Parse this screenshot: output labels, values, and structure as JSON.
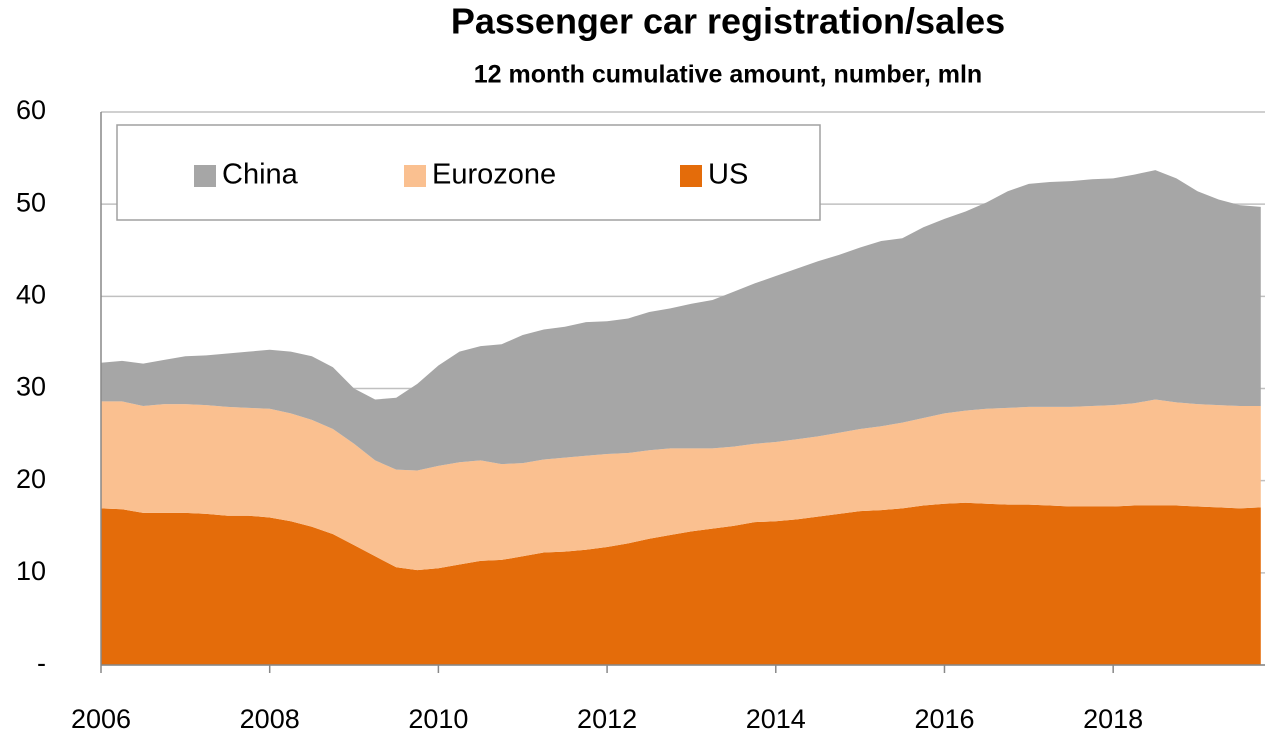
{
  "chart_data": {
    "type": "area",
    "stacked": true,
    "title": "Passenger car registration/sales",
    "subtitle": "12 month cumulative amount, number, mln",
    "x": [
      2006,
      2006.25,
      2006.5,
      2006.75,
      2007,
      2007.25,
      2007.5,
      2007.75,
      2008,
      2008.25,
      2008.5,
      2008.75,
      2009,
      2009.25,
      2009.5,
      2009.75,
      2010,
      2010.25,
      2010.5,
      2010.75,
      2011,
      2011.25,
      2011.5,
      2011.75,
      2012,
      2012.25,
      2012.5,
      2012.75,
      2013,
      2013.25,
      2013.5,
      2013.75,
      2014,
      2014.25,
      2014.5,
      2014.75,
      2015,
      2015.25,
      2015.5,
      2015.75,
      2016,
      2016.25,
      2016.5,
      2016.75,
      2017,
      2017.25,
      2017.5,
      2017.75,
      2018,
      2018.25,
      2018.5,
      2018.75,
      2019,
      2019.25,
      2019.5,
      2019.75
    ],
    "series": [
      {
        "name": "US",
        "color": "#e46c0a",
        "values": [
          17,
          16.9,
          16.5,
          16.5,
          16.5,
          16.4,
          16.2,
          16.2,
          16.0,
          15.6,
          15.0,
          14.2,
          13.0,
          11.8,
          10.6,
          10.3,
          10.5,
          10.9,
          11.3,
          11.4,
          11.8,
          12.2,
          12.3,
          12.5,
          12.8,
          13.2,
          13.7,
          14.1,
          14.5,
          14.8,
          15.1,
          15.5,
          15.6,
          15.8,
          16.1,
          16.4,
          16.7,
          16.8,
          17.0,
          17.3,
          17.5,
          17.6,
          17.5,
          17.4,
          17.4,
          17.3,
          17.2,
          17.2,
          17.2,
          17.3,
          17.3,
          17.3,
          17.2,
          17.1,
          17.0,
          17.1
        ]
      },
      {
        "name": "Eurozone",
        "color": "#fac090",
        "values": [
          11.6,
          11.7,
          11.6,
          11.8,
          11.8,
          11.8,
          11.8,
          11.7,
          11.8,
          11.7,
          11.6,
          11.4,
          11.0,
          10.4,
          10.6,
          10.8,
          11.1,
          11.1,
          10.9,
          10.4,
          10.1,
          10.1,
          10.2,
          10.2,
          10.1,
          9.8,
          9.6,
          9.4,
          9.0,
          8.7,
          8.6,
          8.5,
          8.6,
          8.7,
          8.7,
          8.8,
          8.9,
          9.1,
          9.3,
          9.5,
          9.8,
          10.0,
          10.3,
          10.5,
          10.6,
          10.7,
          10.8,
          10.9,
          11.0,
          11.1,
          11.5,
          11.2,
          11.1,
          11.1,
          11.1,
          11.0
        ]
      },
      {
        "name": "China",
        "color": "#a6a6a6",
        "values": [
          4.2,
          4.4,
          4.6,
          4.8,
          5.2,
          5.4,
          5.8,
          6.1,
          6.4,
          6.7,
          6.9,
          6.7,
          6.0,
          6.6,
          7.8,
          9.4,
          10.9,
          12.0,
          12.4,
          13.0,
          13.9,
          14.1,
          14.2,
          14.5,
          14.4,
          14.6,
          15.0,
          15.2,
          15.7,
          16.1,
          16.8,
          17.4,
          18.0,
          18.5,
          19.0,
          19.3,
          19.7,
          20.1,
          20.0,
          20.7,
          21.1,
          21.6,
          22.4,
          23.5,
          24.2,
          24.4,
          24.5,
          24.6,
          24.6,
          24.8,
          24.9,
          24.3,
          23.1,
          22.3,
          21.8,
          21.6
        ]
      }
    ],
    "xlim": [
      2006,
      2019.8
    ],
    "xticks": [
      2006,
      2008,
      2010,
      2012,
      2014,
      2016,
      2018
    ],
    "ylim": [
      0,
      60
    ],
    "yticks": [
      {
        "value": 0,
        "label": "-"
      },
      10,
      20,
      30,
      40,
      50,
      60
    ],
    "grid": true,
    "legend": "top-left"
  }
}
